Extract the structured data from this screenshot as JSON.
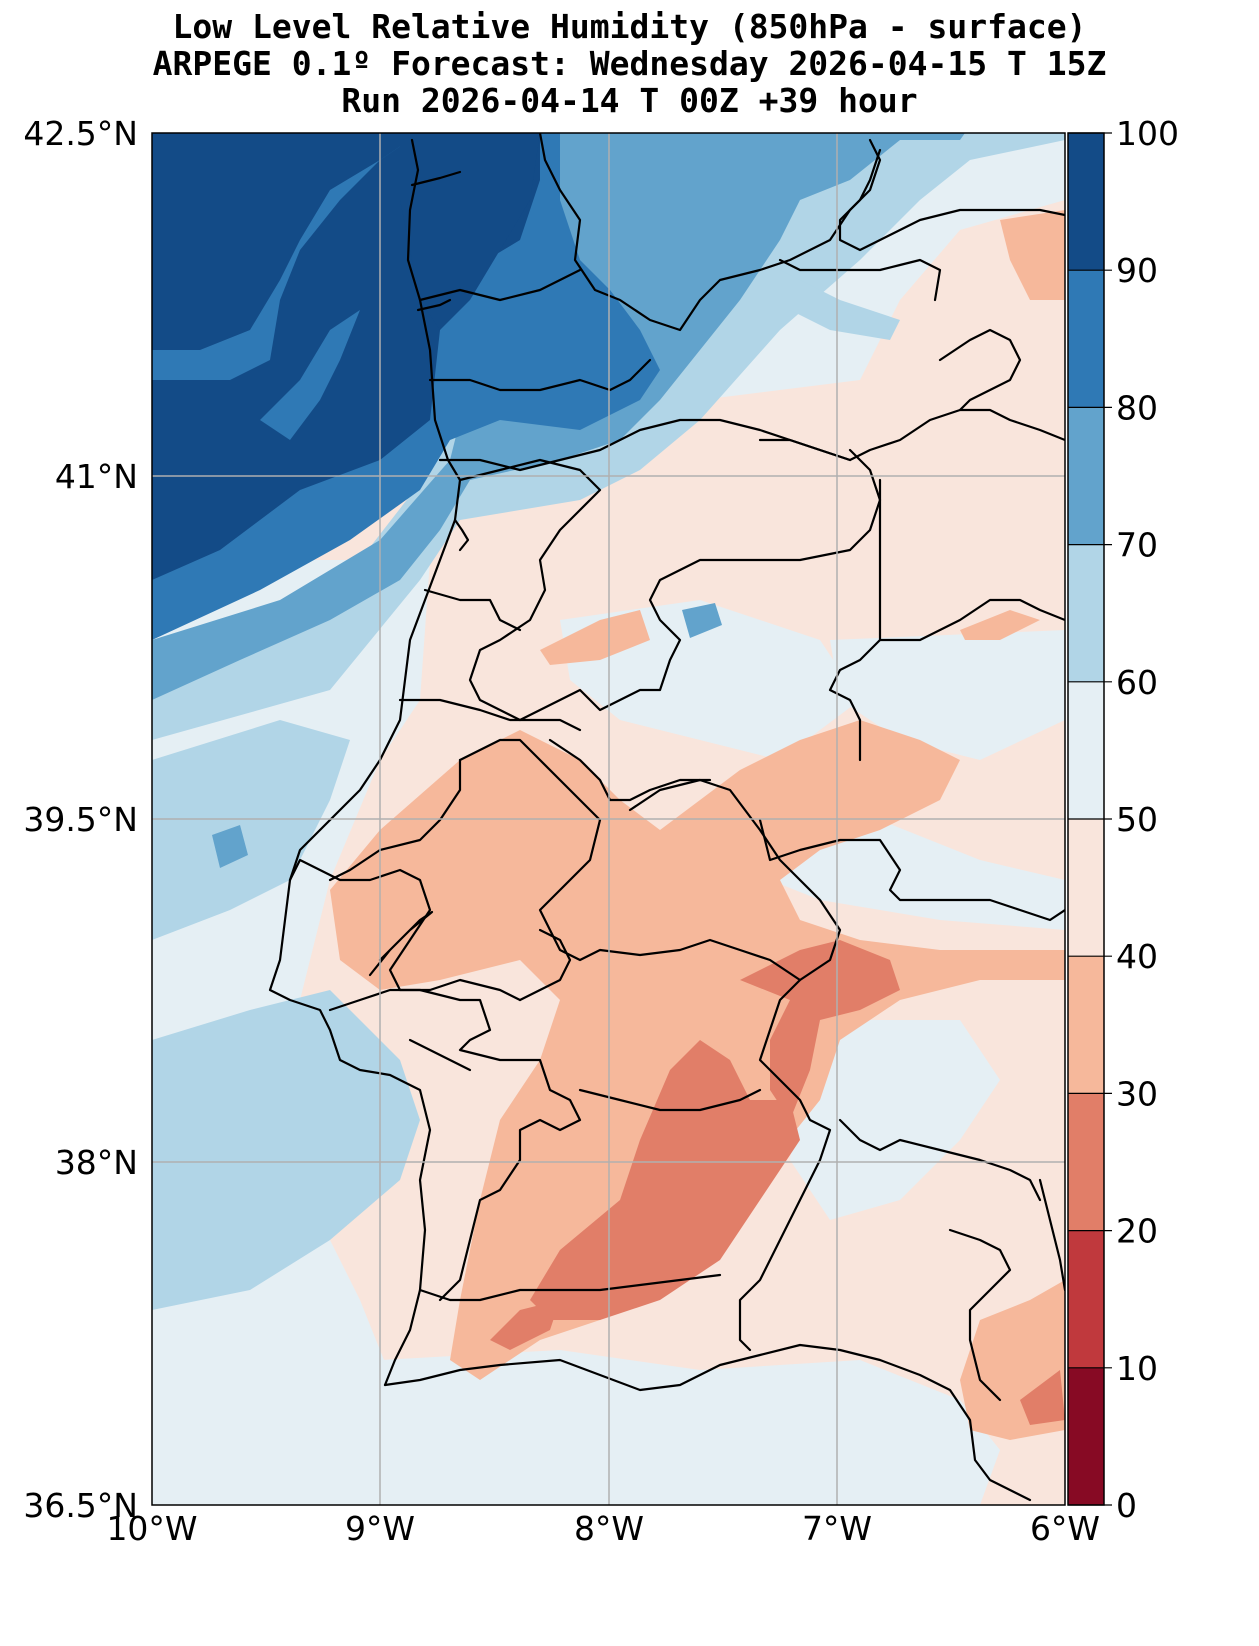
{
  "title": {
    "line1": "Low Level Relative Humidity (850hPa - surface)",
    "line2": "ARPEGE 0.1º Forecast: Wednesday 2026-04-15 T 15Z",
    "line3": "Run 2026-04-14 T 00Z +39 hour"
  },
  "axes": {
    "lat_ticks": [
      "42.5°N",
      "41°N",
      "39.5°N",
      "38°N",
      "36.5°N"
    ],
    "lon_ticks": [
      "10°W",
      "9°W",
      "8°W",
      "7°W",
      "6°W"
    ]
  },
  "colorbar": {
    "ticks": [
      "100",
      "90",
      "80",
      "70",
      "60",
      "50",
      "40",
      "30",
      "20",
      "10",
      "0"
    ],
    "levels": [
      {
        "range": "90-100",
        "color": "#134b87"
      },
      {
        "range": "80-90",
        "color": "#2f79b5"
      },
      {
        "range": "70-80",
        "color": "#62a3cc"
      },
      {
        "range": "60-70",
        "color": "#b1d5e7"
      },
      {
        "range": "50-60",
        "color": "#e5eff4"
      },
      {
        "range": "40-50",
        "color": "#f9e5dc"
      },
      {
        "range": "30-40",
        "color": "#f6b89b"
      },
      {
        "range": "20-30",
        "color": "#e17e68"
      },
      {
        "range": "10-20",
        "color": "#c0393d"
      },
      {
        "range": "0-10",
        "color": "#870a24"
      }
    ]
  }
}
